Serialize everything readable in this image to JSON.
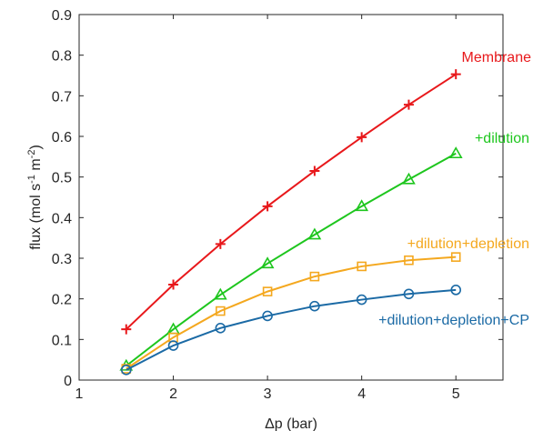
{
  "chart_data": {
    "type": "line",
    "xlabel": "Δp (bar)",
    "ylabel_main": "flux (mol s",
    "ylabel_sup1": "-1",
    "ylabel_mid": " m",
    "ylabel_sup2": "-2",
    "ylabel_end": ")",
    "xlim": [
      1,
      5.5
    ],
    "ylim": [
      0,
      0.9
    ],
    "xticks": [
      1,
      2,
      3,
      4,
      5
    ],
    "xtick_labels": [
      "1",
      "2",
      "3",
      "4",
      "5"
    ],
    "yticks": [
      0,
      0.1,
      0.2,
      0.3,
      0.4,
      0.5,
      0.6,
      0.7,
      0.8,
      0.9
    ],
    "ytick_labels": [
      "0",
      "0.1",
      "0.2",
      "0.3",
      "0.4",
      "0.5",
      "0.6",
      "0.7",
      "0.8",
      "0.9"
    ],
    "grid": false,
    "x": [
      1.5,
      2,
      2.5,
      3,
      3.5,
      4,
      4.5,
      5
    ],
    "series": [
      {
        "name": "Membrane",
        "color": "#e8181b",
        "marker": "plus",
        "values": [
          0.125,
          0.235,
          0.335,
          0.428,
          0.515,
          0.598,
          0.678,
          0.753
        ]
      },
      {
        "name": "+dilution",
        "color": "#1ec61e",
        "marker": "triangle",
        "values": [
          0.035,
          0.125,
          0.21,
          0.287,
          0.358,
          0.428,
          0.494,
          0.558
        ]
      },
      {
        "name": "+dilution+depletion",
        "color": "#f4a81f",
        "marker": "square",
        "values": [
          0.028,
          0.105,
          0.17,
          0.218,
          0.255,
          0.28,
          0.295,
          0.303
        ]
      },
      {
        "name": "+dilution+depletion+CP",
        "color": "#1b6aa5",
        "marker": "circle",
        "values": [
          0.025,
          0.085,
          0.128,
          0.158,
          0.182,
          0.198,
          0.212,
          0.222
        ]
      }
    ]
  }
}
